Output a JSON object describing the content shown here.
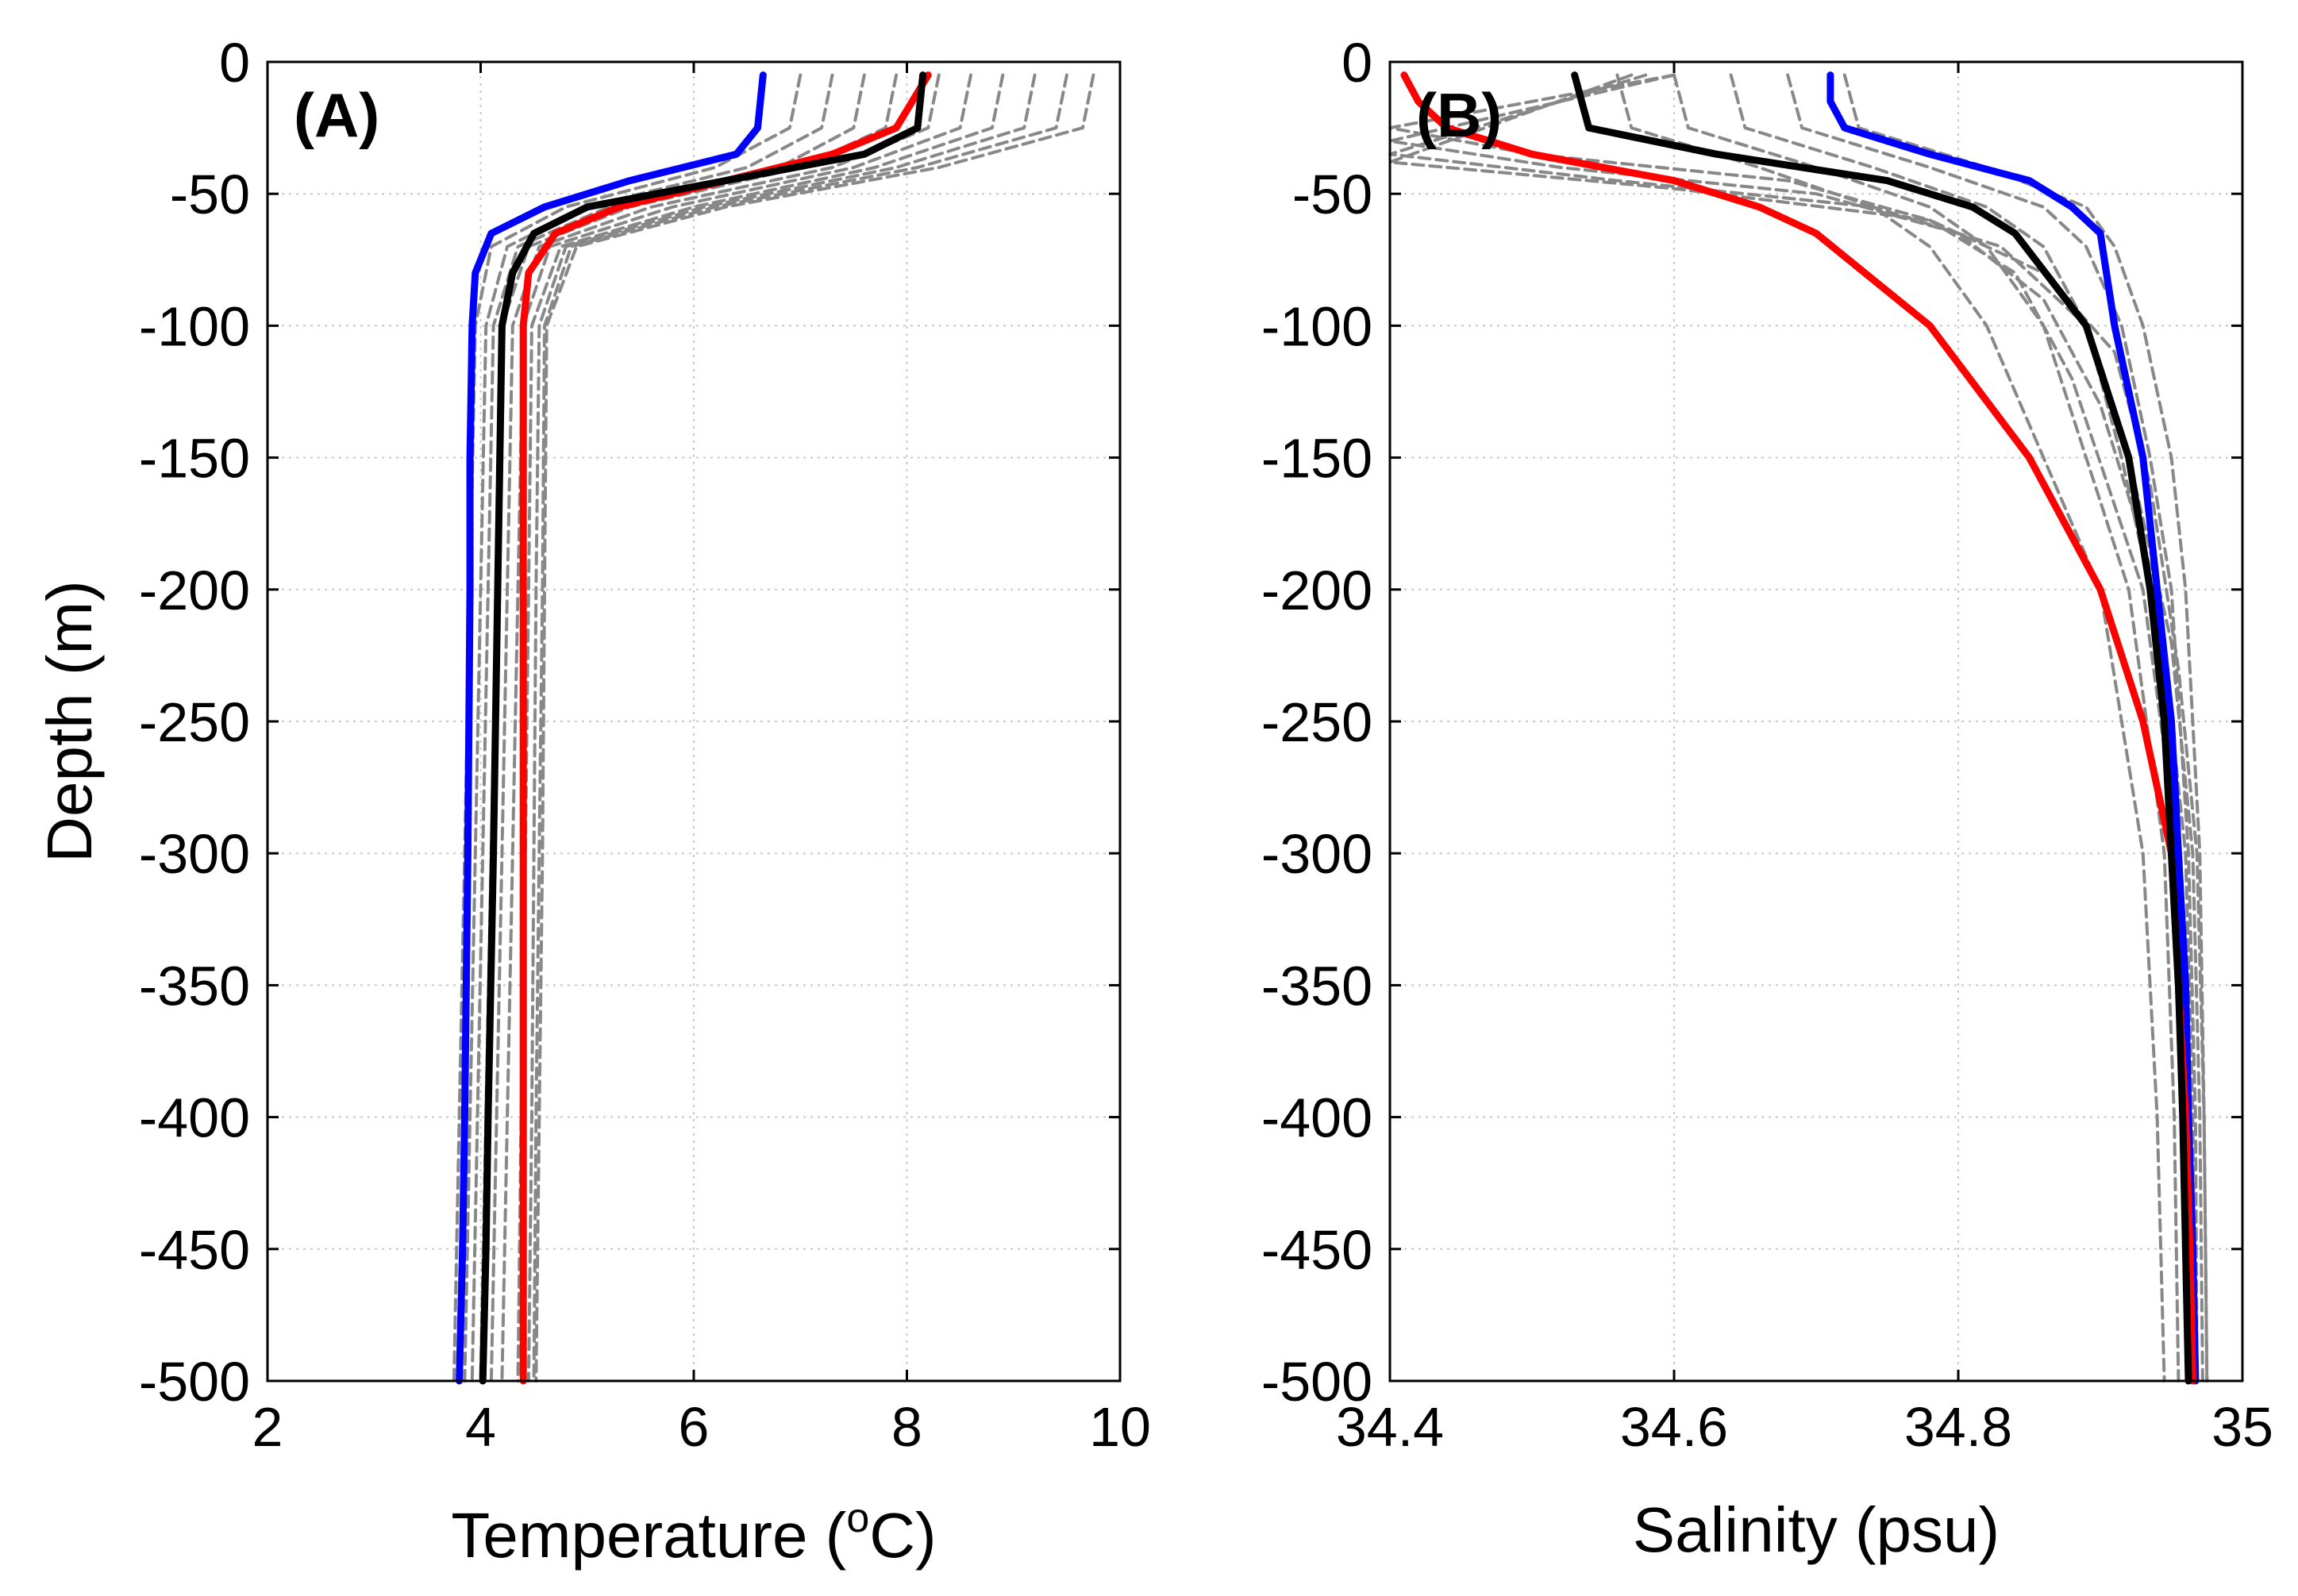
{
  "chart_data": [
    {
      "type": "line",
      "panel_label": "(A)",
      "xlabel": "Temperature (",
      "xlabel_sup": "o",
      "xlabel_unit": "C)",
      "ylabel": "Depth (m)",
      "xlim": [
        2,
        10
      ],
      "ylim": [
        -500,
        0
      ],
      "grid": true,
      "xticks": [
        2,
        4,
        6,
        8,
        10
      ],
      "xtick_labels": [
        "2",
        "4",
        "6",
        "8",
        "10"
      ],
      "yticks": [
        0,
        -50,
        -100,
        -150,
        -200,
        -250,
        -300,
        -350,
        -400,
        -450,
        -500
      ],
      "ytick_labels": [
        "0",
        "-50",
        "-100",
        "-150",
        "-200",
        "-250",
        "-300",
        "-350",
        "-400",
        "-450",
        "-500"
      ],
      "series": [
        {
          "name": "blue profile",
          "color": "#0000ff",
          "style": "solid",
          "depth": [
            -5,
            -25,
            -35,
            -45,
            -55,
            -65,
            -80,
            -100,
            -150,
            -200,
            -300,
            -400,
            -450,
            -500
          ],
          "values": [
            6.65,
            6.6,
            6.4,
            5.4,
            4.6,
            4.1,
            3.95,
            3.92,
            3.9,
            3.9,
            3.88,
            3.85,
            3.83,
            3.8
          ]
        },
        {
          "name": "red profile",
          "color": "#ff0000",
          "style": "solid",
          "depth": [
            -5,
            -25,
            -35,
            -45,
            -55,
            -65,
            -80,
            -100,
            -150,
            -200,
            -300,
            -400,
            -450,
            -500
          ],
          "values": [
            8.2,
            7.9,
            7.3,
            6.3,
            5.3,
            4.7,
            4.45,
            4.4,
            4.4,
            4.4,
            4.4,
            4.4,
            4.4,
            4.4
          ]
        },
        {
          "name": "black profile",
          "color": "#000000",
          "style": "solid",
          "depth": [
            -5,
            -25,
            -35,
            -45,
            -55,
            -65,
            -80,
            -100,
            -150,
            -200,
            -300,
            -400,
            -450,
            -500
          ],
          "values": [
            8.15,
            8.1,
            7.6,
            6.3,
            5.0,
            4.5,
            4.3,
            4.2,
            4.18,
            4.16,
            4.12,
            4.07,
            4.05,
            4.02
          ]
        },
        {
          "name": "gray profile 1",
          "color": "#888888",
          "style": "dashed",
          "depth": [
            -5,
            -25,
            -40,
            -55,
            -70,
            -100,
            -200,
            -300,
            -400,
            -500
          ],
          "values": [
            7.0,
            6.9,
            6.2,
            4.8,
            4.1,
            3.95,
            3.9,
            3.85,
            3.8,
            3.75
          ]
        },
        {
          "name": "gray profile 2",
          "color": "#888888",
          "style": "dashed",
          "depth": [
            -5,
            -25,
            -40,
            -55,
            -70,
            -100,
            -200,
            -300,
            -400,
            -500
          ],
          "values": [
            7.3,
            7.2,
            6.5,
            5.0,
            4.25,
            4.05,
            4.0,
            3.95,
            3.9,
            3.85
          ]
        },
        {
          "name": "gray profile 3",
          "color": "#888888",
          "style": "dashed",
          "depth": [
            -5,
            -25,
            -40,
            -55,
            -70,
            -100,
            -200,
            -300,
            -400,
            -500
          ],
          "values": [
            7.6,
            7.5,
            6.8,
            5.2,
            4.35,
            4.12,
            4.07,
            4.02,
            3.97,
            3.92
          ]
        },
        {
          "name": "gray profile 4",
          "color": "#888888",
          "style": "dashed",
          "depth": [
            -5,
            -25,
            -40,
            -55,
            -70,
            -100,
            -200,
            -300,
            -400,
            -500
          ],
          "values": [
            7.9,
            7.8,
            7.0,
            5.4,
            4.45,
            4.2,
            4.15,
            4.1,
            4.05,
            4.0
          ]
        },
        {
          "name": "gray profile 5",
          "color": "#888888",
          "style": "dashed",
          "depth": [
            -5,
            -25,
            -40,
            -55,
            -70,
            -100,
            -200,
            -300,
            -400,
            -500
          ],
          "values": [
            8.3,
            8.2,
            7.3,
            5.6,
            4.55,
            4.3,
            4.25,
            4.2,
            4.15,
            4.1
          ]
        },
        {
          "name": "gray profile 6",
          "color": "#888888",
          "style": "dashed",
          "depth": [
            -5,
            -25,
            -40,
            -55,
            -70,
            -100,
            -200,
            -300,
            -400,
            -500
          ],
          "values": [
            8.6,
            8.5,
            7.5,
            5.8,
            4.65,
            4.4,
            4.35,
            4.3,
            4.25,
            4.2
          ]
        },
        {
          "name": "gray profile 7",
          "color": "#888888",
          "style": "dashed",
          "depth": [
            -5,
            -25,
            -40,
            -55,
            -70,
            -100,
            -200,
            -300,
            -400,
            -500
          ],
          "values": [
            8.9,
            8.8,
            7.7,
            6.0,
            4.75,
            4.48,
            4.45,
            4.42,
            4.38,
            4.35
          ]
        },
        {
          "name": "gray profile 8",
          "color": "#888888",
          "style": "dashed",
          "depth": [
            -5,
            -25,
            -40,
            -55,
            -70,
            -100,
            -200,
            -300,
            -400,
            -500
          ],
          "values": [
            9.2,
            9.1,
            7.9,
            6.1,
            4.8,
            4.55,
            4.52,
            4.5,
            4.48,
            4.45
          ]
        },
        {
          "name": "gray profile 9",
          "color": "#888888",
          "style": "dashed",
          "depth": [
            -5,
            -25,
            -40,
            -55,
            -70,
            -100,
            -200,
            -300,
            -400,
            -500
          ],
          "values": [
            9.5,
            9.4,
            8.1,
            6.2,
            4.85,
            4.6,
            4.58,
            4.55,
            4.52,
            4.5
          ]
        },
        {
          "name": "gray profile 10",
          "color": "#888888",
          "style": "dashed",
          "depth": [
            -5,
            -25,
            -40,
            -55,
            -70,
            -100,
            -200,
            -300,
            -400,
            -500
          ],
          "values": [
            9.75,
            9.65,
            8.3,
            6.3,
            4.9,
            4.62,
            4.6,
            4.58,
            4.55,
            4.52
          ]
        }
      ]
    },
    {
      "type": "line",
      "panel_label": "(B)",
      "xlabel": "Salinity (psu)",
      "xlim": [
        34.4,
        35
      ],
      "ylim": [
        -500,
        0
      ],
      "grid": true,
      "xticks": [
        34.4,
        34.6,
        34.8,
        35
      ],
      "xtick_labels": [
        "34.4",
        "34.6",
        "34.8",
        "35"
      ],
      "yticks": [
        0,
        -50,
        -100,
        -150,
        -200,
        -250,
        -300,
        -350,
        -400,
        -450,
        -500
      ],
      "ytick_labels": [
        "0",
        "-50",
        "-100",
        "-150",
        "-200",
        "-250",
        "-300",
        "-350",
        "-400",
        "-450",
        "-500"
      ],
      "series": [
        {
          "name": "blue profile",
          "color": "#0000ff",
          "style": "solid",
          "depth": [
            -5,
            -15,
            -25,
            -35,
            -45,
            -55,
            -65,
            -100,
            -150,
            -200,
            -250,
            -300,
            -350,
            -400,
            -450,
            -500
          ],
          "values": [
            34.71,
            34.71,
            34.72,
            34.78,
            34.85,
            34.88,
            34.9,
            34.91,
            34.93,
            34.94,
            34.95,
            34.955,
            34.96,
            34.962,
            34.965,
            34.967
          ]
        },
        {
          "name": "red profile",
          "color": "#ff0000",
          "style": "solid",
          "depth": [
            -5,
            -15,
            -25,
            -35,
            -45,
            -55,
            -65,
            -100,
            -150,
            -200,
            -250,
            -300,
            -350,
            -400,
            -450,
            -500
          ],
          "values": [
            34.41,
            34.42,
            34.44,
            34.5,
            34.6,
            34.66,
            34.7,
            34.78,
            34.85,
            34.9,
            34.93,
            34.95,
            34.955,
            34.96,
            34.963,
            34.965
          ]
        },
        {
          "name": "black profile",
          "color": "#000000",
          "style": "solid",
          "depth": [
            -5,
            -15,
            -25,
            -35,
            -45,
            -55,
            -65,
            -100,
            -150,
            -200,
            -250,
            -300,
            -350,
            -400,
            -450,
            -500
          ],
          "values": [
            34.53,
            34.535,
            34.54,
            34.63,
            34.75,
            34.81,
            34.84,
            34.89,
            34.92,
            34.935,
            34.945,
            34.95,
            34.955,
            34.958,
            34.96,
            34.962
          ]
        },
        {
          "name": "gray profile 1",
          "color": "#888888",
          "style": "dashed",
          "depth": [
            -5,
            -25,
            -40,
            -55,
            -70,
            -100,
            -150,
            -200,
            -300,
            -400,
            -500
          ],
          "values": [
            34.56,
            34.57,
            34.66,
            34.74,
            34.78,
            34.82,
            34.86,
            34.9,
            34.93,
            34.94,
            34.945
          ]
        },
        {
          "name": "gray profile 2",
          "color": "#888888",
          "style": "dashed",
          "depth": [
            -5,
            -25,
            -40,
            -55,
            -70,
            -100,
            -150,
            -200,
            -300,
            -400,
            -500
          ],
          "values": [
            34.6,
            34.61,
            34.7,
            34.78,
            34.82,
            34.86,
            34.89,
            34.92,
            34.945,
            34.952,
            34.955
          ]
        },
        {
          "name": "gray profile 3",
          "color": "#888888",
          "style": "dashed",
          "depth": [
            -5,
            -25,
            -40,
            -55,
            -70,
            -100,
            -150,
            -200,
            -300,
            -400,
            -500
          ],
          "values": [
            34.64,
            34.65,
            34.74,
            34.82,
            34.86,
            34.89,
            34.915,
            34.935,
            34.955,
            34.96,
            34.962
          ]
        },
        {
          "name": "gray profile 4",
          "color": "#888888",
          "style": "dashed",
          "depth": [
            -5,
            -25,
            -40,
            -55,
            -70,
            -100,
            -150,
            -200,
            -300,
            -400,
            -500
          ],
          "values": [
            34.68,
            34.69,
            34.78,
            34.86,
            34.89,
            34.915,
            34.935,
            34.95,
            34.962,
            34.967,
            34.968
          ]
        },
        {
          "name": "gray profile 5",
          "color": "#888888",
          "style": "dashed",
          "depth": [
            -5,
            -25,
            -40,
            -55,
            -70,
            -100,
            -150,
            -200,
            -300,
            -400,
            -500
          ],
          "values": [
            34.72,
            34.73,
            34.82,
            34.89,
            34.91,
            34.93,
            34.95,
            34.96,
            34.97,
            34.973,
            34.975
          ]
        },
        {
          "name": "gray profile 6",
          "color": "#888888",
          "style": "dashed",
          "depth": [
            -5,
            -25,
            -35,
            -45,
            -60,
            -80,
            -120,
            -200,
            -300,
            -400,
            -500
          ],
          "values": [
            34.6,
            34.4,
            34.5,
            34.68,
            34.78,
            34.84,
            34.88,
            34.93,
            34.955,
            34.96,
            34.962
          ]
        },
        {
          "name": "gray profile 7",
          "color": "#888888",
          "style": "dashed",
          "depth": [
            -5,
            -30,
            -40,
            -50,
            -65,
            -90,
            -130,
            -200,
            -300,
            -400,
            -500
          ],
          "values": [
            34.6,
            34.4,
            34.52,
            34.7,
            34.8,
            34.86,
            34.9,
            34.94,
            34.96,
            34.965,
            34.967
          ]
        },
        {
          "name": "gray profile 8",
          "color": "#888888",
          "style": "dashed",
          "depth": [
            -5,
            -35,
            -45,
            -55,
            -70,
            -100,
            -150,
            -220,
            -300,
            -400,
            -500
          ],
          "values": [
            34.58,
            34.4,
            34.56,
            34.74,
            34.83,
            34.89,
            34.92,
            34.95,
            34.965,
            34.97,
            34.972
          ]
        },
        {
          "name": "gray profile 9",
          "color": "#888888",
          "style": "dashed",
          "depth": [
            -5,
            -38,
            -48,
            -60,
            -80,
            -110,
            -160,
            -230,
            -300,
            -400,
            -500
          ],
          "values": [
            34.57,
            34.4,
            34.6,
            34.78,
            34.86,
            34.91,
            34.935,
            34.955,
            34.968,
            34.973,
            34.975
          ]
        }
      ]
    }
  ]
}
